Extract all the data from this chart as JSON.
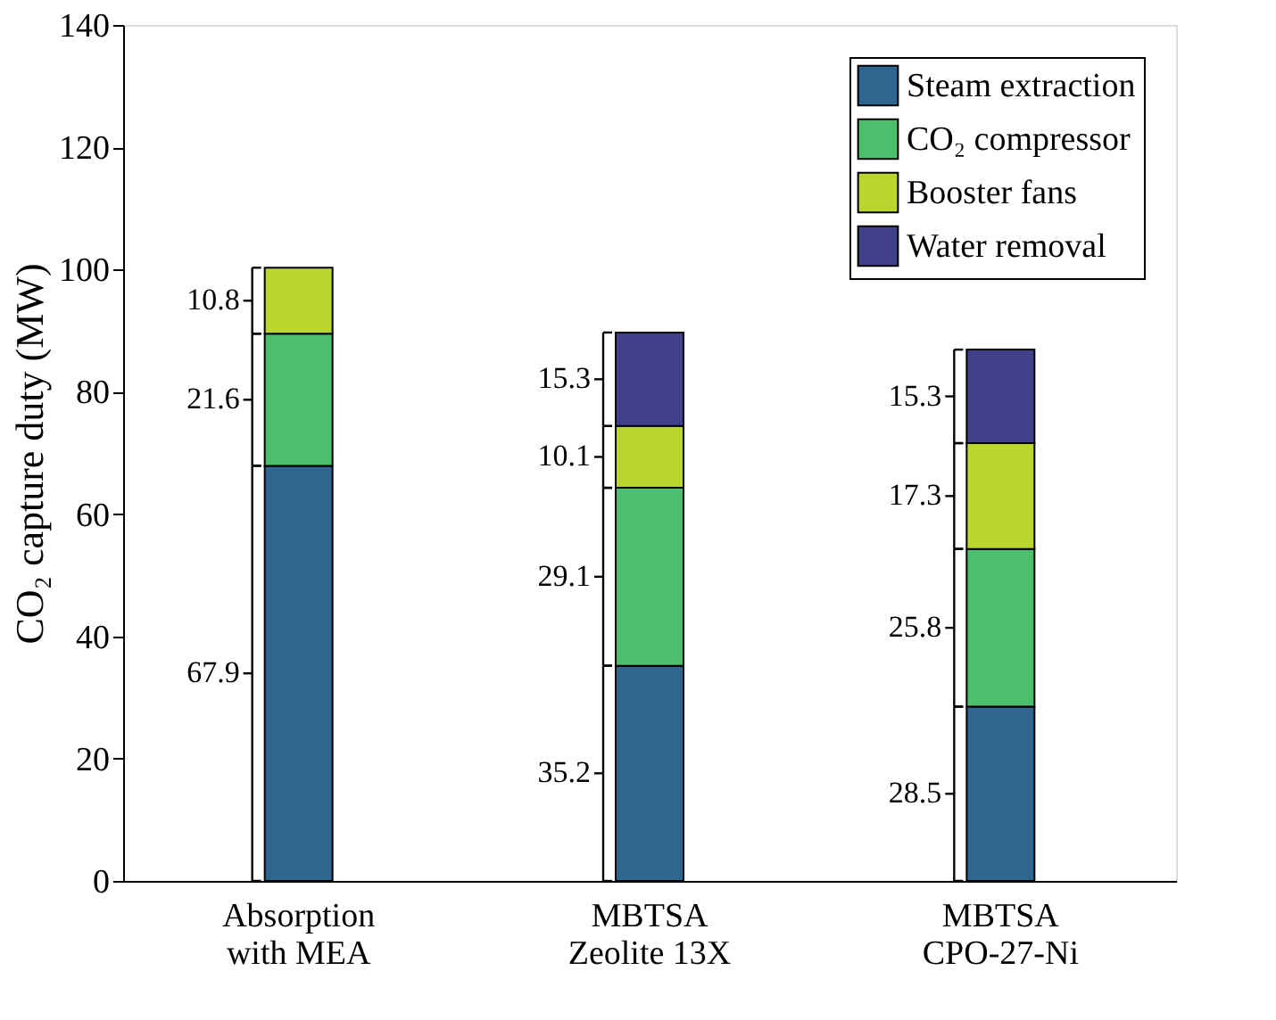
{
  "chart_data": {
    "type": "bar",
    "stacked": true,
    "ylabel": "CO₂ capture duty (MW)",
    "categories": [
      "Absorption\nwith MEA",
      "MBTSA\nZeolite 13X",
      "MBTSA\nCPO-27-Ni"
    ],
    "series": [
      {
        "name": "Steam extraction",
        "color": "#2e6690",
        "values": [
          67.9,
          35.2,
          28.5
        ],
        "value_labels": [
          "67.9",
          "35.2",
          "28.5"
        ]
      },
      {
        "name": "CO₂ compressor",
        "color": "#4bbf6b",
        "values": [
          21.6,
          29.1,
          25.8
        ],
        "value_labels": [
          "21.6",
          "29.1",
          "25.8"
        ]
      },
      {
        "name": "Booster fans",
        "color": "#b9d62f",
        "values": [
          10.8,
          10.1,
          17.3
        ],
        "value_labels": [
          "10.8",
          "10.1",
          "17.3"
        ]
      },
      {
        "name": "Water removal",
        "color": "#403f8a",
        "values": [
          null,
          15.3,
          15.3
        ],
        "value_labels": [
          null,
          "15.3",
          "15.3"
        ]
      }
    ],
    "ylim": [
      0,
      140
    ],
    "yticks": [
      0,
      20,
      40,
      60,
      80,
      100,
      120,
      140
    ],
    "grid": false,
    "legend": "top right"
  }
}
